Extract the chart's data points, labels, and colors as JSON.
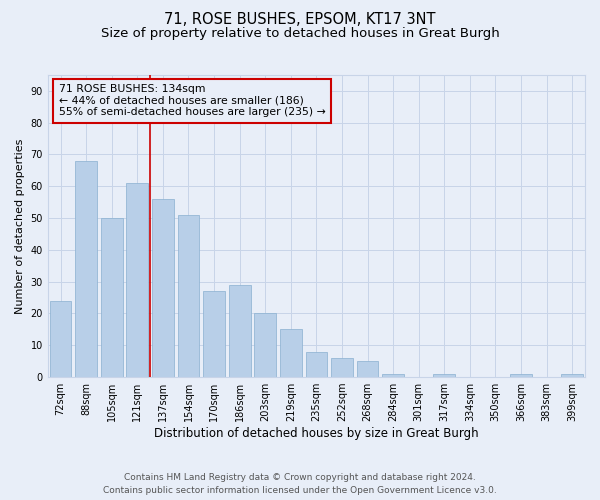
{
  "title": "71, ROSE BUSHES, EPSOM, KT17 3NT",
  "subtitle": "Size of property relative to detached houses in Great Burgh",
  "xlabel": "Distribution of detached houses by size in Great Burgh",
  "ylabel": "Number of detached properties",
  "categories": [
    "72sqm",
    "88sqm",
    "105sqm",
    "121sqm",
    "137sqm",
    "154sqm",
    "170sqm",
    "186sqm",
    "203sqm",
    "219sqm",
    "235sqm",
    "252sqm",
    "268sqm",
    "284sqm",
    "301sqm",
    "317sqm",
    "334sqm",
    "350sqm",
    "366sqm",
    "383sqm",
    "399sqm"
  ],
  "values": [
    24,
    68,
    50,
    61,
    56,
    51,
    27,
    29,
    20,
    15,
    8,
    6,
    5,
    1,
    0,
    1,
    0,
    0,
    1,
    0,
    1
  ],
  "bar_color": "#b8cfe8",
  "bar_edge_color": "#8ab0d0",
  "vline_color": "#cc0000",
  "vline_index": 4,
  "annotation_text_line1": "71 ROSE BUSHES: 134sqm",
  "annotation_text_line2": "← 44% of detached houses are smaller (186)",
  "annotation_text_line3": "55% of semi-detached houses are larger (235) →",
  "annotation_box_color": "#cc0000",
  "ylim": [
    0,
    95
  ],
  "yticks": [
    0,
    10,
    20,
    30,
    40,
    50,
    60,
    70,
    80,
    90
  ],
  "grid_color": "#c8d4e8",
  "background_color": "#e8eef8",
  "footer_line1": "Contains HM Land Registry data © Crown copyright and database right 2024.",
  "footer_line2": "Contains public sector information licensed under the Open Government Licence v3.0.",
  "title_fontsize": 10.5,
  "subtitle_fontsize": 9.5,
  "xlabel_fontsize": 8.5,
  "ylabel_fontsize": 8,
  "tick_fontsize": 7,
  "annotation_fontsize": 7.8,
  "footer_fontsize": 6.5
}
